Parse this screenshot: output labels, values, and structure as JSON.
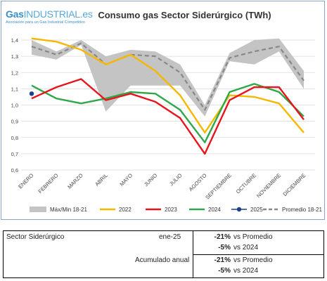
{
  "logo": {
    "brand_a": "Gas",
    "brand_b": "INDUSTRIAL",
    "brand_c": ".es",
    "tagline": "Asociación para un Gas Industrial Competitivo"
  },
  "chart_data": {
    "type": "line",
    "title": "Consumo gas Sector Siderúrgico (TWh)",
    "categories": [
      "ENERO",
      "FEBRERO",
      "MARZO",
      "ABRIL",
      "MAYO",
      "JUNIO",
      "JULIO",
      "AGOSTO",
      "SEPTIEMBRE",
      "OCTUBRE",
      "NOVIEMBRE",
      "DICIEMBRE"
    ],
    "ylim": [
      0.6,
      1.4
    ],
    "yticks": [
      "0,6",
      "0,7",
      "0,8",
      "0,9",
      "1,0",
      "1,1",
      "1,2",
      "1,3",
      "1,4"
    ],
    "grid": true,
    "legend_position": "bottom",
    "band": {
      "name": "Máx/Min 18-21",
      "color": "#c4c4c4",
      "max": [
        1.4,
        1.33,
        1.4,
        1.3,
        1.34,
        1.33,
        1.25,
        1.0,
        1.32,
        1.4,
        1.41,
        1.21
      ],
      "min": [
        1.31,
        1.28,
        1.37,
        0.96,
        1.12,
        1.12,
        1.12,
        0.93,
        1.27,
        1.25,
        1.33,
        1.1
      ]
    },
    "series": [
      {
        "name": "2022",
        "color": "#f5b800",
        "values": [
          1.41,
          1.39,
          1.34,
          1.25,
          1.31,
          1.21,
          1.06,
          0.83,
          1.06,
          1.05,
          1.01,
          0.83
        ]
      },
      {
        "name": "2023",
        "color": "#e8141b",
        "values": [
          1.04,
          1.11,
          1.16,
          1.03,
          1.07,
          1.02,
          0.92,
          0.7,
          1.03,
          1.11,
          1.11,
          0.91
        ]
      },
      {
        "name": "2024",
        "color": "#2ea84a",
        "values": [
          1.12,
          1.04,
          1.01,
          1.04,
          1.08,
          1.07,
          0.97,
          0.77,
          1.08,
          1.13,
          1.08,
          0.93
        ]
      },
      {
        "name": "2025",
        "color": "#1f3f8a",
        "marker": "circle",
        "values": [
          1.07,
          null,
          null,
          null,
          null,
          null,
          null,
          null,
          null,
          null,
          null,
          null
        ]
      },
      {
        "name": "Promedio 18-21",
        "color": "#888888",
        "dash": "dashed",
        "values": [
          1.36,
          1.31,
          1.38,
          1.25,
          1.31,
          1.3,
          1.2,
          0.97,
          1.29,
          1.33,
          1.36,
          1.15
        ]
      }
    ]
  },
  "summary": {
    "sector_label": "Sector Siderúrgico",
    "period": "ene-25",
    "accumulated_label": "Acumulado anual",
    "rows": [
      {
        "pct": "-21%",
        "text": "vs Promedio"
      },
      {
        "pct": "-5%",
        "text": "vs 2024"
      },
      {
        "pct": "-21%",
        "text": "vs Promedio"
      },
      {
        "pct": "-5%",
        "text": "vs 2024"
      }
    ]
  }
}
